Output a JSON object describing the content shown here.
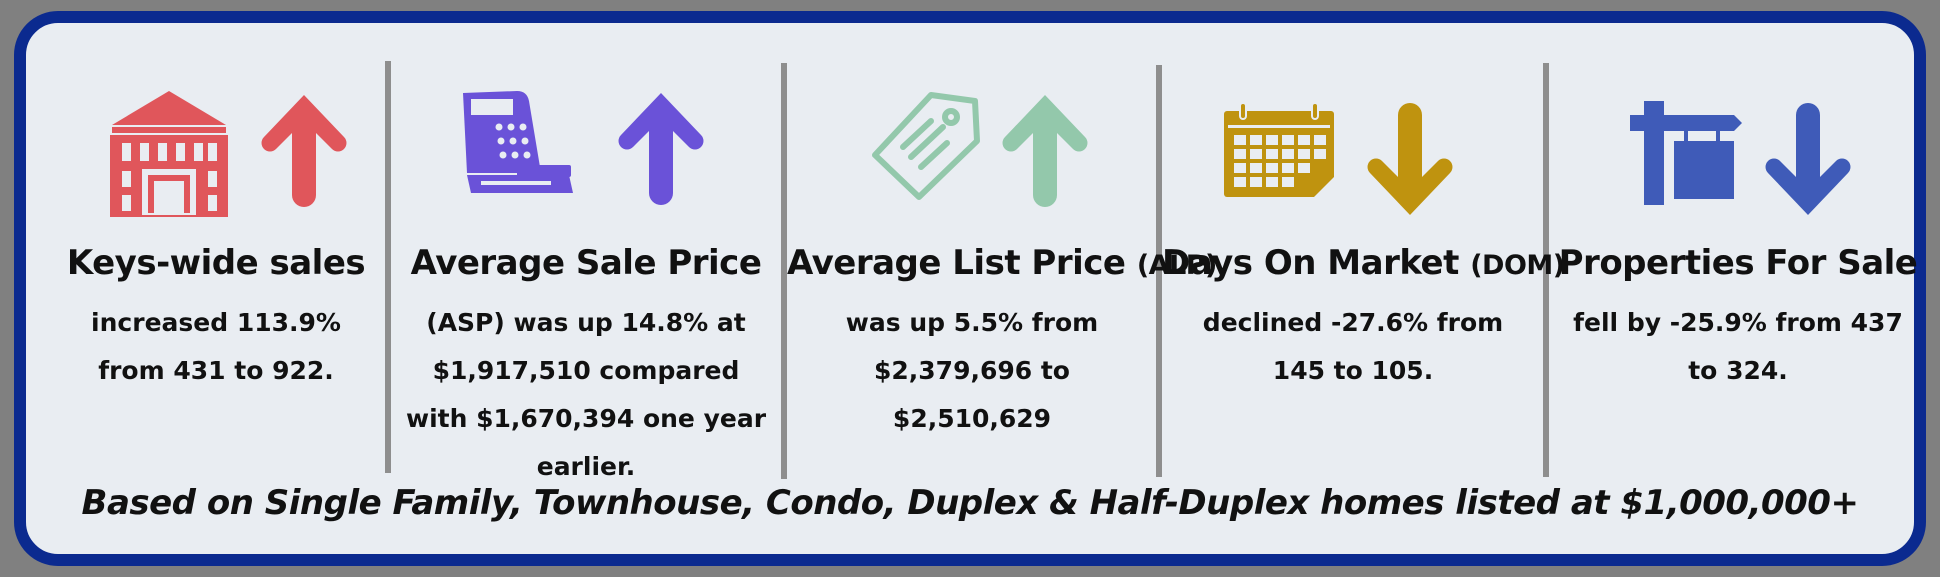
{
  "colors": {
    "frame": "#0b2a8f",
    "background": "#e9edf2",
    "divider": "#8e8e8e",
    "sales": "#e0565b",
    "asp": "#6a52d8",
    "alp": "#93c8ab",
    "dom": "#bf930f",
    "properties": "#3f5bb8"
  },
  "panels": [
    {
      "title": "Keys-wide sales",
      "title_suffix": "",
      "body": "increased 113.9% from 431 to 922.",
      "icon": "building-icon",
      "trend": "up"
    },
    {
      "title": "Average Sale Price",
      "title_suffix": "",
      "body": "(ASP) was up 14.8% at $1,917,510 compared with $1,670,394 one year earlier.",
      "icon": "cash-register-icon",
      "trend": "up"
    },
    {
      "title": "Average List Price",
      "title_suffix": "(ALP)",
      "body": "was up 5.5% from $2,379,696 to $2,510,629",
      "icon": "price-tag-icon",
      "trend": "up"
    },
    {
      "title": "Days On Market",
      "title_suffix": "(DOM)",
      "body": "declined -27.6% from 145 to 105.",
      "icon": "calendar-icon",
      "trend": "down"
    },
    {
      "title": "Properties For Sale",
      "title_suffix": "",
      "body": "fell by -25.9% from 437 to 324.",
      "icon": "for-sale-sign-icon",
      "trend": "down"
    }
  ],
  "footer": "Based on Single Family, Townhouse, Condo, Duplex & Half-Duplex homes listed at $1,000,000+"
}
